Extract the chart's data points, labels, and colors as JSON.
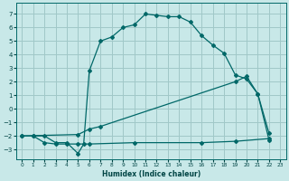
{
  "xlabel": "Humidex (Indice chaleur)",
  "xlim": [
    -0.5,
    23.5
  ],
  "ylim": [
    -3.7,
    7.8
  ],
  "xticks": [
    0,
    1,
    2,
    3,
    4,
    5,
    6,
    7,
    8,
    9,
    10,
    11,
    12,
    13,
    14,
    15,
    16,
    17,
    18,
    19,
    20,
    21,
    22,
    23
  ],
  "yticks": [
    -3,
    -2,
    -1,
    0,
    1,
    2,
    3,
    4,
    5,
    6,
    7
  ],
  "background_color": "#c8e8e8",
  "grid_color": "#a0c8c8",
  "line_color": "#006868",
  "line1_x": [
    1,
    2,
    3,
    4,
    5,
    5.5,
    6,
    7,
    8,
    9,
    10,
    11,
    12,
    13,
    14,
    15,
    16,
    17,
    18,
    19,
    20,
    21,
    22
  ],
  "line1_y": [
    -2.0,
    -2.0,
    -2.5,
    -2.5,
    -3.3,
    -2.6,
    2.8,
    5.0,
    5.3,
    6.0,
    6.2,
    7.0,
    6.9,
    6.8,
    6.8,
    6.4,
    5.4,
    4.7,
    4.1,
    2.5,
    2.2,
    1.1,
    -1.8
  ],
  "line2_x": [
    0,
    5,
    6,
    7,
    19,
    20,
    21,
    22
  ],
  "line2_y": [
    -2.0,
    -1.9,
    -1.5,
    -1.3,
    2.0,
    2.4,
    1.1,
    -2.3
  ],
  "line3_x": [
    0,
    1,
    2,
    3,
    4,
    5,
    6,
    10,
    16,
    19,
    22
  ],
  "line3_y": [
    -2.0,
    -2.0,
    -2.5,
    -2.6,
    -2.6,
    -2.6,
    -2.6,
    -2.5,
    -2.5,
    -2.4,
    -2.2
  ]
}
